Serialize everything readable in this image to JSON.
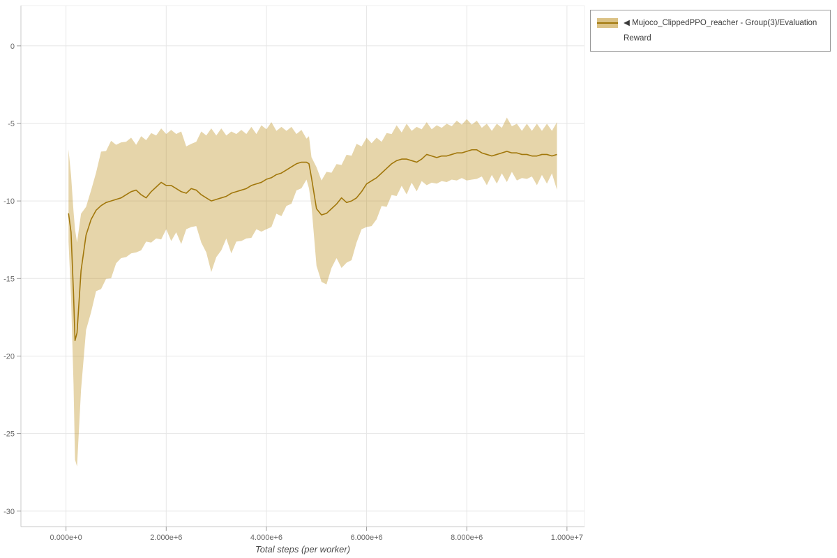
{
  "legend": {
    "label": "◀ Mujoco_ClippedPPO_reacher - Group(3)/Evaluation Reward"
  },
  "chart_data": {
    "type": "line",
    "title": "",
    "xlabel": "Total steps (per worker)",
    "ylabel": "",
    "x_unit": "millions of steps",
    "x_range_millions": [
      -0.9,
      10.35
    ],
    "y_range": [
      -31,
      2.6
    ],
    "grid": true,
    "legend_position": "top-right",
    "x_ticks": [
      {
        "v": 0,
        "label": "0.000e+0"
      },
      {
        "v": 2,
        "label": "2.000e+6"
      },
      {
        "v": 4,
        "label": "4.000e+6"
      },
      {
        "v": 6,
        "label": "6.000e+6"
      },
      {
        "v": 8,
        "label": "8.000e+6"
      },
      {
        "v": 10,
        "label": "1.000e+7"
      }
    ],
    "y_ticks": [
      {
        "v": 0,
        "label": "0"
      },
      {
        "v": -5,
        "label": "-5"
      },
      {
        "v": -10,
        "label": "-10"
      },
      {
        "v": -15,
        "label": "-15"
      },
      {
        "v": -20,
        "label": "-20"
      },
      {
        "v": -25,
        "label": "-25"
      },
      {
        "v": -30,
        "label": "-30"
      }
    ],
    "series": [
      {
        "name": "Mujoco_ClippedPPO_reacher - Group(3)/Evaluation Reward",
        "line_color": "#a1770b",
        "band_color": "#b8860b",
        "band_alpha": 0.35,
        "x": [
          0.05,
          0.1,
          0.15,
          0.18,
          0.22,
          0.3,
          0.4,
          0.5,
          0.6,
          0.7,
          0.8,
          0.9,
          1.0,
          1.1,
          1.2,
          1.3,
          1.4,
          1.5,
          1.6,
          1.7,
          1.8,
          1.9,
          2.0,
          2.1,
          2.2,
          2.3,
          2.4,
          2.5,
          2.6,
          2.7,
          2.8,
          2.9,
          3.0,
          3.1,
          3.2,
          3.3,
          3.4,
          3.5,
          3.6,
          3.7,
          3.8,
          3.9,
          4.0,
          4.1,
          4.2,
          4.3,
          4.4,
          4.5,
          4.6,
          4.7,
          4.8,
          4.85,
          4.9,
          5.0,
          5.1,
          5.2,
          5.3,
          5.4,
          5.5,
          5.6,
          5.7,
          5.8,
          5.9,
          6.0,
          6.1,
          6.2,
          6.3,
          6.4,
          6.5,
          6.6,
          6.7,
          6.8,
          6.9,
          7.0,
          7.1,
          7.2,
          7.3,
          7.4,
          7.5,
          7.6,
          7.7,
          7.8,
          7.9,
          8.0,
          8.1,
          8.2,
          8.3,
          8.4,
          8.5,
          8.6,
          8.7,
          8.8,
          8.9,
          9.0,
          9.1,
          9.2,
          9.3,
          9.4,
          9.5,
          9.6,
          9.7,
          9.8
        ],
        "mean": [
          -10.8,
          -12,
          -16,
          -19,
          -18.5,
          -14.5,
          -12.2,
          -11.2,
          -10.6,
          -10.3,
          -10.1,
          -10,
          -9.9,
          -9.8,
          -9.6,
          -9.4,
          -9.3,
          -9.6,
          -9.8,
          -9.4,
          -9.1,
          -8.8,
          -9,
          -9,
          -9.2,
          -9.4,
          -9.5,
          -9.2,
          -9.3,
          -9.6,
          -9.8,
          -10,
          -9.9,
          -9.8,
          -9.7,
          -9.5,
          -9.4,
          -9.3,
          -9.2,
          -9,
          -8.9,
          -8.8,
          -8.6,
          -8.5,
          -8.3,
          -8.2,
          -8,
          -7.8,
          -7.6,
          -7.5,
          -7.5,
          -7.6,
          -8.5,
          -10.5,
          -10.9,
          -10.8,
          -10.5,
          -10.2,
          -9.8,
          -10.1,
          -10,
          -9.8,
          -9.4,
          -8.9,
          -8.7,
          -8.5,
          -8.2,
          -7.9,
          -7.6,
          -7.4,
          -7.3,
          -7.3,
          -7.4,
          -7.5,
          -7.3,
          -7,
          -7.1,
          -7.2,
          -7.1,
          -7.1,
          -7,
          -6.9,
          -6.9,
          -6.8,
          -6.7,
          -6.7,
          -6.9,
          -7,
          -7.1,
          -7,
          -6.9,
          -6.8,
          -6.9,
          -6.9,
          -7,
          -7,
          -7.1,
          -7.1,
          -7,
          -7,
          -7.1,
          -7
        ],
        "lower": [
          -12.8,
          -16,
          -22,
          -26.5,
          -27.3,
          -22,
          -18.5,
          -17,
          -16,
          -15.5,
          -15.2,
          -14.8,
          -14.2,
          -13.5,
          -13.8,
          -13.2,
          -13.5,
          -13,
          -12.8,
          -12.5,
          -12.6,
          -12.3,
          -12,
          -12.4,
          -12.2,
          -12.6,
          -12,
          -11.5,
          -11.8,
          -12.5,
          -13.5,
          -14.4,
          -13.8,
          -13,
          -12.6,
          -13.2,
          -12.8,
          -12.4,
          -12.6,
          -12.2,
          -12,
          -11.8,
          -12,
          -11.5,
          -11,
          -10.8,
          -10.5,
          -10,
          -9.5,
          -9,
          -8.8,
          -9,
          -10.5,
          -14,
          -15.4,
          -15.2,
          -14.5,
          -13.5,
          -14.5,
          -13.8,
          -14,
          -12.5,
          -12,
          -11.5,
          -11.8,
          -11,
          -10.5,
          -10.2,
          -9.8,
          -9.5,
          -9.2,
          -9.4,
          -9,
          -9.2,
          -8.9,
          -8.8,
          -9,
          -8.7,
          -8.9,
          -8.6,
          -8.8,
          -8.5,
          -8.7,
          -8.5,
          -8.8,
          -8.4,
          -8.6,
          -8.8,
          -8.5,
          -8.7,
          -8.4,
          -8.6,
          -8.3,
          -8.5,
          -8.7,
          -8.4,
          -8.6,
          -8.8,
          -8.5,
          -8.7,
          -8.4,
          -9.1
        ],
        "upper": [
          -6.5,
          -8.5,
          -10.5,
          -12,
          -12.5,
          -11,
          -10.2,
          -9.5,
          -8,
          -7,
          -6.6,
          -6.3,
          -6.2,
          -6.4,
          -6,
          -6.1,
          -6.2,
          -6,
          -5.9,
          -5.8,
          -5.6,
          -5.5,
          -5.5,
          -5.6,
          -5.5,
          -5.7,
          -6.3,
          -6.5,
          -6,
          -5.7,
          -5.6,
          -5.5,
          -5.6,
          -5.5,
          -5.6,
          -5.7,
          -5.5,
          -5.6,
          -5.5,
          -5.4,
          -5.5,
          -5.3,
          -5.2,
          -5.1,
          -5.3,
          -5.4,
          -5.3,
          -5.4,
          -5.5,
          -5.6,
          -5.8,
          -6,
          -7,
          -8,
          -8.5,
          -8.3,
          -8,
          -7.8,
          -7.5,
          -7.2,
          -6.9,
          -6.5,
          -6.3,
          -6.1,
          -6.1,
          -6.1,
          -6,
          -5.8,
          -5.5,
          -5.3,
          -5.4,
          -5.2,
          -5.3,
          -5.4,
          -5.2,
          -5.1,
          -5.2,
          -5.3,
          -5.1,
          -5.2,
          -5,
          -5,
          -4.9,
          -4.9,
          -4.9,
          -5,
          -5.1,
          -5.2,
          -5.3,
          -5.2,
          -5.1,
          -4.8,
          -5,
          -5.2,
          -5.3,
          -5.2,
          -5.3,
          -5.2,
          -5.3,
          -5.2,
          -5.3,
          -5.1
        ]
      }
    ]
  }
}
